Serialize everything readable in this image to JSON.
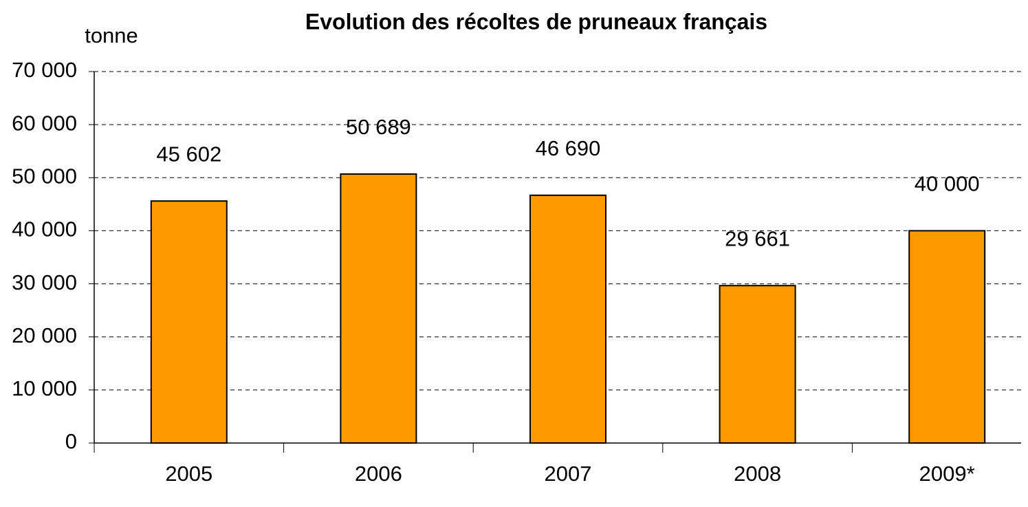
{
  "chart_data": {
    "type": "bar",
    "title": "Evolution des récoltes de pruneaux français",
    "y_label": "tonne",
    "categories": [
      "2005",
      "2006",
      "2007",
      "2008",
      "2009*"
    ],
    "values": [
      45602,
      50689,
      46690,
      29661,
      40000
    ],
    "value_labels": [
      "45 602",
      "50 689",
      "46 690",
      "29 661",
      "40 000"
    ],
    "color": "#ff9900",
    "ylim": [
      0,
      70000
    ],
    "yticks": [
      0,
      {
        "value": 10000,
        "label": "10 000"
      },
      {
        "value": 20000,
        "label": "20 000"
      },
      {
        "value": 30000,
        "label": "30 000"
      },
      {
        "value": 40000,
        "label": "40 000"
      },
      {
        "value": 50000,
        "label": "50 000"
      },
      {
        "value": 60000,
        "label": "60 000"
      },
      {
        "value": 70000,
        "label": "70 000"
      }
    ],
    "grid": true
  }
}
